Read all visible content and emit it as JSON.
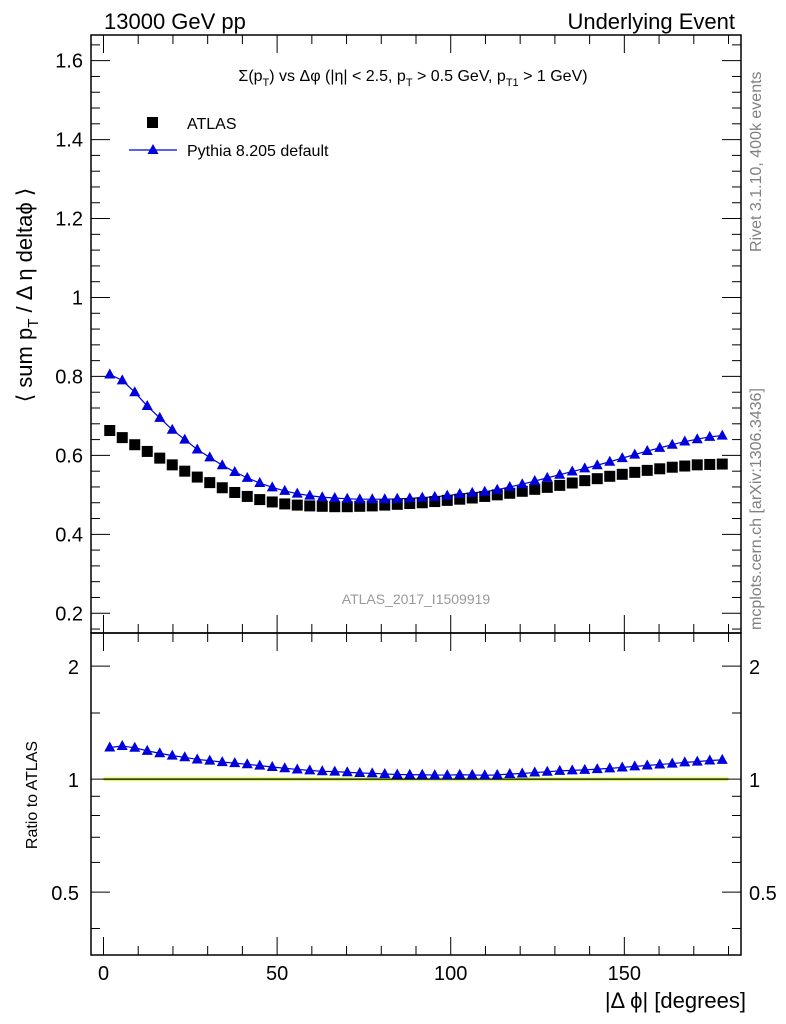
{
  "header": {
    "left": "13000 GeV pp",
    "right": "Underlying Event"
  },
  "side_text": {
    "top": "Rivet 3.1.10,  400k events",
    "bottom": "mcplots.cern.ch [arXiv:1306.3436]"
  },
  "watermark": "ATLAS_2017_I1509919",
  "colors": {
    "atlas": "#000000",
    "pythia": "#0000dd",
    "band": "#ddff55",
    "watermark": "#999999",
    "side": "#808080"
  },
  "chart_data": [
    {
      "type": "scatter",
      "title": "Σ(p_T) vs Δφ (|η| < 2.5, p_T > 0.5 GeV, p_T1 > 1 GeV)",
      "title_parts": {
        "a": "Σ(p",
        "b": "T",
        "c": ") vs Δφ (|η| < 2.5, p",
        "d": "T",
        "e": " > 0.5 GeV, p",
        "f": "T1",
        "g": " > 1 GeV)"
      },
      "ylabel": "⟨ sum p_T / Δ η deltaϕ ⟩",
      "ylabel_parts": {
        "a": "⟨ sum p",
        "b": "T",
        "c": " / Δ η deltaϕ ⟩"
      },
      "xlim": [
        -3.6,
        183.6
      ],
      "ylim": [
        0.15,
        1.665
      ],
      "yticks": [
        0.2,
        0.4,
        0.6,
        0.8,
        1.0,
        1.2,
        1.4,
        1.6
      ],
      "ytick_labels": [
        "0.2",
        "0.4",
        "0.6",
        "0.8",
        "1",
        "1.2",
        "1.4",
        "1.6"
      ],
      "legend": [
        "ATLAS",
        "Pythia 8.205 default"
      ],
      "x": [
        1.8,
        5.4,
        9,
        12.6,
        16.2,
        19.8,
        23.4,
        27,
        30.6,
        34.2,
        37.8,
        41.4,
        45,
        48.6,
        52.2,
        55.8,
        59.4,
        63,
        66.6,
        70.2,
        73.8,
        77.4,
        81,
        84.6,
        88.2,
        91.8,
        95.4,
        99,
        102.6,
        106.2,
        109.8,
        113.4,
        117,
        120.6,
        124.2,
        127.8,
        131.4,
        135,
        138.6,
        142.2,
        145.8,
        149.4,
        153,
        156.6,
        160.2,
        163.8,
        167.4,
        171,
        174.6,
        178.2
      ],
      "series": [
        {
          "name": "ATLAS",
          "marker": "square",
          "values": [
            0.663,
            0.645,
            0.627,
            0.61,
            0.593,
            0.576,
            0.56,
            0.545,
            0.531,
            0.518,
            0.506,
            0.496,
            0.488,
            0.482,
            0.477,
            0.474,
            0.472,
            0.471,
            0.47,
            0.47,
            0.471,
            0.472,
            0.474,
            0.476,
            0.478,
            0.48,
            0.483,
            0.486,
            0.489,
            0.492,
            0.496,
            0.5,
            0.504,
            0.509,
            0.514,
            0.519,
            0.524,
            0.53,
            0.536,
            0.541,
            0.547,
            0.552,
            0.557,
            0.562,
            0.566,
            0.57,
            0.573,
            0.576,
            0.577,
            0.578
          ]
        },
        {
          "name": "Pythia 8.205 default",
          "marker": "triangle",
          "values": [
            0.805,
            0.79,
            0.76,
            0.725,
            0.695,
            0.665,
            0.64,
            0.615,
            0.595,
            0.575,
            0.558,
            0.543,
            0.53,
            0.519,
            0.51,
            0.503,
            0.498,
            0.494,
            0.492,
            0.49,
            0.489,
            0.489,
            0.489,
            0.49,
            0.491,
            0.493,
            0.495,
            0.498,
            0.502,
            0.505,
            0.508,
            0.513,
            0.52,
            0.527,
            0.535,
            0.543,
            0.551,
            0.559,
            0.567,
            0.575,
            0.584,
            0.593,
            0.602,
            0.611,
            0.619,
            0.627,
            0.635,
            0.641,
            0.647,
            0.65
          ]
        }
      ]
    },
    {
      "type": "scatter",
      "ylabel": "Ratio to ATLAS",
      "xlabel": "|Δ ϕ| [degrees]",
      "xlim": [
        -3.6,
        183.6
      ],
      "ylim": [
        0.34,
        2.45
      ],
      "yscale": "log",
      "yticks": [
        0.5,
        1,
        2
      ],
      "ytick_labels": [
        "0.5",
        "1",
        "2"
      ],
      "xticks": [
        0,
        50,
        100,
        150
      ],
      "xtick_labels": [
        "0",
        "50",
        "100",
        "150"
      ],
      "band_half_width": 0.012,
      "series": [
        {
          "name": "Pythia 8.205 default",
          "marker": "triangle",
          "values": [
            1.214,
            1.225,
            1.212,
            1.189,
            1.172,
            1.155,
            1.143,
            1.128,
            1.12,
            1.11,
            1.103,
            1.095,
            1.086,
            1.077,
            1.069,
            1.061,
            1.055,
            1.049,
            1.047,
            1.043,
            1.038,
            1.036,
            1.032,
            1.029,
            1.027,
            1.027,
            1.025,
            1.025,
            1.027,
            1.026,
            1.024,
            1.026,
            1.032,
            1.035,
            1.041,
            1.046,
            1.052,
            1.055,
            1.058,
            1.063,
            1.068,
            1.074,
            1.081,
            1.087,
            1.094,
            1.1,
            1.108,
            1.113,
            1.121,
            1.125
          ]
        }
      ]
    }
  ]
}
